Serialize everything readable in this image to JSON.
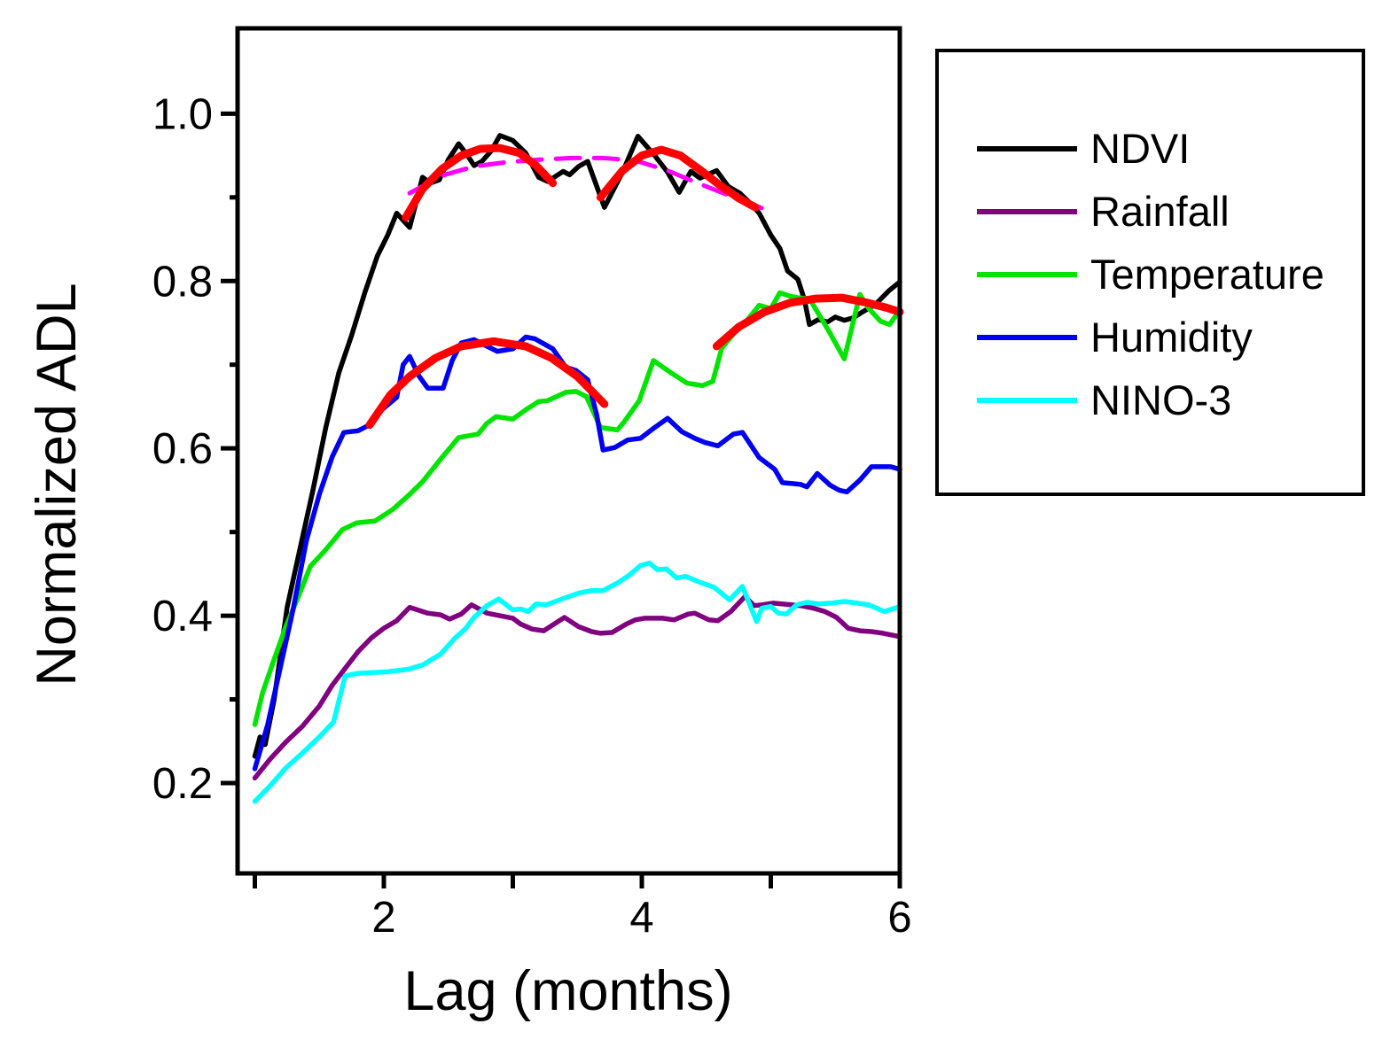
{
  "colors": {
    "background": "#FFFFFF",
    "axis": "#000000",
    "fit_line": "#FF0000",
    "envelope_line": "#FF00FF"
  },
  "legend": {
    "entries": [
      {
        "label": "NDVI",
        "color": "#000000"
      },
      {
        "label": "Rainfall",
        "color": "#800080"
      },
      {
        "label": "Temperature",
        "color": "#00E400"
      },
      {
        "label": "Humidity",
        "color": "#0000F0"
      },
      {
        "label": "NINO-3",
        "color": "#00FFFF"
      }
    ]
  },
  "chart_data": {
    "type": "line",
    "title": "",
    "xlabel": "Lag (months)",
    "ylabel": "Normalized ADL",
    "xlim": [
      0.866,
      6.0
    ],
    "ylim": [
      0.092,
      1.102
    ],
    "grid": false,
    "legend_position": "outside-right",
    "x_ticks": {
      "values": [
        1,
        2,
        3,
        4,
        5,
        6
      ],
      "labels": [
        "",
        "2",
        "",
        "4",
        "",
        "6"
      ]
    },
    "y_ticks": {
      "values": [
        0.2,
        0.3,
        0.4,
        0.5,
        0.6,
        0.7,
        0.8,
        0.9,
        1.0
      ],
      "labels": [
        "0.2",
        "",
        "0.4",
        "",
        "0.6",
        "",
        "0.8",
        "",
        "1.0"
      ]
    },
    "series": [
      {
        "name": "NDVI",
        "color": "#000000",
        "width": 5.5,
        "dash": "",
        "in_legend": true,
        "x": [
          1.0,
          1.04,
          1.08,
          1.15,
          1.25,
          1.35,
          1.45,
          1.55,
          1.65,
          1.75,
          1.85,
          1.95,
          2.03,
          2.1,
          2.2,
          2.3,
          2.36,
          2.43,
          2.5,
          2.58,
          2.64,
          2.7,
          2.76,
          2.83,
          2.9,
          3.0,
          3.1,
          3.2,
          3.27,
          3.39,
          3.44,
          3.51,
          3.58,
          3.71,
          3.85,
          3.97,
          4.1,
          4.2,
          4.29,
          4.38,
          4.45,
          4.52,
          4.58,
          4.67,
          4.76,
          4.84,
          4.91,
          5.0,
          5.07,
          5.13,
          5.21,
          5.26,
          5.3,
          5.37,
          5.44,
          5.5,
          5.57,
          5.64,
          5.71,
          5.81,
          5.92,
          6.0
        ],
        "y": [
          0.232,
          0.255,
          0.246,
          0.3,
          0.41,
          0.48,
          0.55,
          0.625,
          0.69,
          0.735,
          0.785,
          0.83,
          0.855,
          0.881,
          0.864,
          0.924,
          0.917,
          0.921,
          0.945,
          0.964,
          0.952,
          0.938,
          0.943,
          0.955,
          0.974,
          0.968,
          0.953,
          0.924,
          0.919,
          0.931,
          0.927,
          0.937,
          0.943,
          0.888,
          0.93,
          0.973,
          0.95,
          0.93,
          0.906,
          0.931,
          0.923,
          0.928,
          0.932,
          0.913,
          0.905,
          0.893,
          0.881,
          0.855,
          0.839,
          0.812,
          0.802,
          0.778,
          0.748,
          0.754,
          0.751,
          0.757,
          0.753,
          0.756,
          0.763,
          0.772,
          0.789,
          0.799
        ]
      },
      {
        "name": "Rainfall",
        "color": "#800080",
        "width": 5.5,
        "dash": "",
        "in_legend": true,
        "x": [
          1.0,
          1.12,
          1.24,
          1.37,
          1.5,
          1.6,
          1.7,
          1.8,
          1.9,
          2.0,
          2.1,
          2.2,
          2.34,
          2.44,
          2.51,
          2.6,
          2.68,
          2.8,
          2.9,
          3.0,
          3.06,
          3.15,
          3.24,
          3.35,
          3.4,
          3.51,
          3.61,
          3.68,
          3.77,
          3.88,
          3.95,
          4.02,
          4.16,
          4.25,
          4.36,
          4.41,
          4.52,
          4.59,
          4.69,
          4.8,
          4.87,
          4.93,
          5.02,
          5.16,
          5.23,
          5.33,
          5.42,
          5.51,
          5.6,
          5.69,
          5.78,
          5.87,
          6.0
        ],
        "y": [
          0.206,
          0.229,
          0.249,
          0.268,
          0.292,
          0.317,
          0.337,
          0.357,
          0.373,
          0.385,
          0.394,
          0.41,
          0.403,
          0.401,
          0.396,
          0.402,
          0.413,
          0.403,
          0.4,
          0.397,
          0.39,
          0.384,
          0.382,
          0.393,
          0.398,
          0.387,
          0.381,
          0.379,
          0.38,
          0.39,
          0.395,
          0.397,
          0.397,
          0.395,
          0.402,
          0.403,
          0.395,
          0.394,
          0.405,
          0.423,
          0.412,
          0.413,
          0.415,
          0.413,
          0.412,
          0.409,
          0.405,
          0.398,
          0.385,
          0.382,
          0.381,
          0.379,
          0.375
        ]
      },
      {
        "name": "Temperature",
        "color": "#00E400",
        "width": 5.5,
        "dash": "",
        "in_legend": true,
        "x": [
          1.0,
          1.06,
          1.15,
          1.24,
          1.34,
          1.43,
          1.55,
          1.68,
          1.79,
          1.93,
          2.07,
          2.2,
          2.3,
          2.44,
          2.58,
          2.73,
          2.8,
          2.87,
          3.0,
          3.1,
          3.2,
          3.27,
          3.41,
          3.49,
          3.57,
          3.68,
          3.81,
          3.86,
          3.98,
          4.09,
          4.23,
          4.35,
          4.47,
          4.55,
          4.62,
          4.73,
          4.81,
          4.91,
          5.0,
          5.07,
          5.15,
          5.21,
          5.3,
          5.45,
          5.57,
          5.69,
          5.76,
          5.85,
          5.92,
          6.0
        ],
        "y": [
          0.27,
          0.308,
          0.348,
          0.387,
          0.424,
          0.459,
          0.479,
          0.503,
          0.511,
          0.513,
          0.527,
          0.545,
          0.56,
          0.587,
          0.613,
          0.617,
          0.63,
          0.638,
          0.635,
          0.646,
          0.656,
          0.657,
          0.667,
          0.668,
          0.662,
          0.625,
          0.622,
          0.631,
          0.657,
          0.705,
          0.69,
          0.678,
          0.675,
          0.68,
          0.72,
          0.74,
          0.752,
          0.771,
          0.767,
          0.786,
          0.782,
          0.78,
          0.779,
          0.74,
          0.707,
          0.784,
          0.767,
          0.752,
          0.748,
          0.765
        ]
      },
      {
        "name": "Humidity",
        "color": "#0000F0",
        "width": 5.5,
        "dash": "",
        "in_legend": true,
        "x": [
          1.0,
          1.1,
          1.2,
          1.3,
          1.4,
          1.5,
          1.6,
          1.69,
          1.8,
          1.9,
          1.96,
          2.03,
          2.1,
          2.15,
          2.2,
          2.27,
          2.34,
          2.46,
          2.53,
          2.6,
          2.7,
          2.8,
          2.88,
          3.0,
          3.1,
          3.17,
          3.31,
          3.41,
          3.49,
          3.58,
          3.65,
          3.7,
          3.79,
          3.89,
          3.99,
          4.1,
          4.2,
          4.31,
          4.41,
          4.49,
          4.59,
          4.71,
          4.78,
          4.91,
          5.03,
          5.09,
          5.16,
          5.23,
          5.28,
          5.36,
          5.46,
          5.53,
          5.59,
          5.69,
          5.78,
          5.85,
          5.93,
          6.0
        ],
        "y": [
          0.217,
          0.27,
          0.34,
          0.41,
          0.49,
          0.545,
          0.59,
          0.619,
          0.621,
          0.629,
          0.643,
          0.652,
          0.661,
          0.7,
          0.71,
          0.687,
          0.672,
          0.672,
          0.705,
          0.726,
          0.73,
          0.722,
          0.716,
          0.719,
          0.733,
          0.731,
          0.719,
          0.697,
          0.693,
          0.682,
          0.64,
          0.598,
          0.601,
          0.61,
          0.612,
          0.625,
          0.636,
          0.62,
          0.612,
          0.607,
          0.603,
          0.617,
          0.619,
          0.589,
          0.575,
          0.559,
          0.558,
          0.557,
          0.554,
          0.57,
          0.556,
          0.55,
          0.548,
          0.562,
          0.578,
          0.578,
          0.578,
          0.575
        ]
      },
      {
        "name": "NINO-3",
        "color": "#00FFFF",
        "width": 5.5,
        "dash": "",
        "in_legend": true,
        "x": [
          1.0,
          1.12,
          1.24,
          1.37,
          1.5,
          1.61,
          1.7,
          1.79,
          1.91,
          2.03,
          2.19,
          2.3,
          2.44,
          2.55,
          2.63,
          2.7,
          2.8,
          2.89,
          3.0,
          3.06,
          3.12,
          3.18,
          3.26,
          3.4,
          3.51,
          3.61,
          3.7,
          3.81,
          3.9,
          3.99,
          4.06,
          4.12,
          4.19,
          4.27,
          4.34,
          4.45,
          4.56,
          4.68,
          4.78,
          4.89,
          4.93,
          5.0,
          5.06,
          5.12,
          5.2,
          5.28,
          5.37,
          5.47,
          5.57,
          5.67,
          5.76,
          5.88,
          6.0
        ],
        "y": [
          0.178,
          0.197,
          0.218,
          0.236,
          0.255,
          0.273,
          0.328,
          0.331,
          0.332,
          0.333,
          0.336,
          0.341,
          0.354,
          0.373,
          0.384,
          0.398,
          0.412,
          0.42,
          0.407,
          0.408,
          0.405,
          0.414,
          0.413,
          0.421,
          0.427,
          0.43,
          0.43,
          0.439,
          0.448,
          0.46,
          0.463,
          0.455,
          0.456,
          0.445,
          0.447,
          0.44,
          0.434,
          0.419,
          0.435,
          0.393,
          0.409,
          0.411,
          0.403,
          0.402,
          0.413,
          0.416,
          0.414,
          0.415,
          0.417,
          0.415,
          0.413,
          0.405,
          0.411
        ]
      },
      {
        "name": "envelope-ndvi",
        "color": "#FF00FF",
        "width": 5,
        "dash": "27 16",
        "in_legend": false,
        "x": [
          2.2,
          2.45,
          2.7,
          2.95,
          3.2,
          3.45,
          3.7,
          3.95,
          4.2,
          4.45,
          4.7,
          5.0
        ],
        "y": [
          0.905,
          0.926,
          0.937,
          0.942,
          0.945,
          0.947,
          0.947,
          0.944,
          0.932,
          0.916,
          0.901,
          0.883
        ]
      },
      {
        "name": "fit-ndvi-1",
        "color": "#FF0000",
        "width": 9,
        "dash": "",
        "in_legend": false,
        "x": [
          2.17,
          2.3,
          2.45,
          2.6,
          2.75,
          2.9,
          3.05,
          3.18,
          3.31
        ],
        "y": [
          0.876,
          0.91,
          0.934,
          0.95,
          0.958,
          0.959,
          0.953,
          0.938,
          0.917
        ]
      },
      {
        "name": "fit-ndvi-2",
        "color": "#FF0000",
        "width": 9,
        "dash": "",
        "in_legend": false,
        "x": [
          3.68,
          3.85,
          4.0,
          4.15,
          4.3,
          4.45,
          4.6,
          4.75,
          4.88
        ],
        "y": [
          0.9,
          0.932,
          0.95,
          0.957,
          0.95,
          0.933,
          0.915,
          0.899,
          0.888
        ]
      },
      {
        "name": "fit-humidity",
        "color": "#FF0000",
        "width": 9,
        "dash": "",
        "in_legend": false,
        "x": [
          1.89,
          2.05,
          2.2,
          2.4,
          2.6,
          2.85,
          3.1,
          3.3,
          3.5,
          3.71
        ],
        "y": [
          0.628,
          0.664,
          0.686,
          0.708,
          0.722,
          0.728,
          0.722,
          0.708,
          0.686,
          0.653
        ]
      },
      {
        "name": "fit-temperature",
        "color": "#FF0000",
        "width": 9,
        "dash": "",
        "in_legend": false,
        "x": [
          4.58,
          4.75,
          4.95,
          5.15,
          5.35,
          5.55,
          5.75,
          5.9,
          6.0
        ],
        "y": [
          0.722,
          0.745,
          0.763,
          0.774,
          0.779,
          0.78,
          0.774,
          0.768,
          0.763
        ]
      }
    ]
  }
}
